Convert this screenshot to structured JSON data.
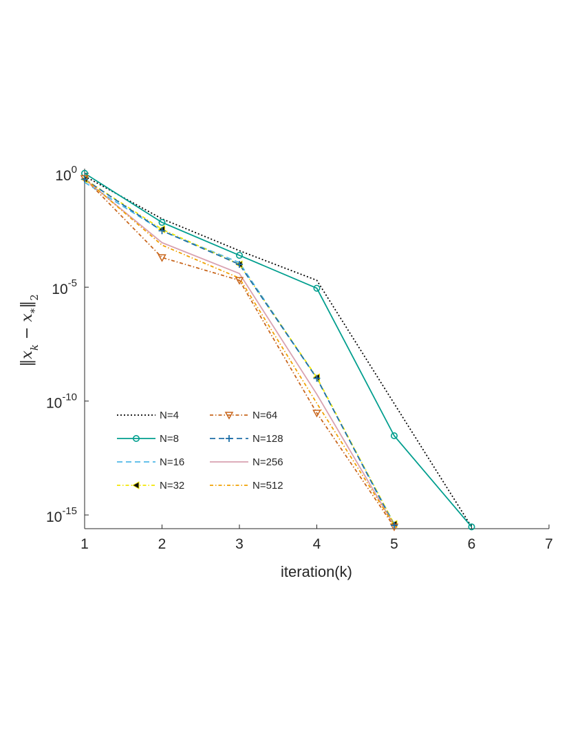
{
  "chart_data": {
    "type": "line",
    "xlabel": "iteration(k)",
    "ylabel": "‖x_k − x_*‖_2",
    "x_scale": "linear",
    "y_scale": "log",
    "xlim": [
      1,
      7
    ],
    "ylim": [
      2.5e-16,
      1.6
    ],
    "x_ticks": [
      1,
      2,
      3,
      4,
      5,
      6,
      7
    ],
    "y_ticks": [
      {
        "value": 1,
        "base": "10",
        "exp": "0"
      },
      {
        "value": 1e-05,
        "base": "10",
        "exp": "-5"
      },
      {
        "value": 1e-10,
        "base": "10",
        "exp": "-10"
      },
      {
        "value": 1e-15,
        "base": "10",
        "exp": "-15"
      }
    ],
    "grid": false,
    "legend_placement": "lower-left",
    "series": [
      {
        "name": "N=4",
        "color": "#000000",
        "dash": "2,3",
        "marker": "none",
        "x": [
          1,
          2,
          3,
          4,
          6
        ],
        "y": [
          0.75,
          0.01,
          0.0004,
          2e-05,
          3e-16
        ]
      },
      {
        "name": "N=8",
        "color": "#009e8e",
        "dash": "",
        "marker": "circle",
        "x": [
          1,
          2,
          3,
          4,
          5,
          6
        ],
        "y": [
          1.0,
          0.007,
          0.00025,
          9e-06,
          3e-12,
          3e-16
        ]
      },
      {
        "name": "N=16",
        "color": "#4db8e8",
        "dash": "8,5",
        "marker": "none",
        "x": [
          1,
          2,
          3,
          4,
          5
        ],
        "y": [
          0.4,
          0.003,
          0.00012,
          1e-09,
          4e-16
        ]
      },
      {
        "name": "N=32",
        "color": "#f2e600",
        "dash": "5,3,1.5,3",
        "marker": "triangle-left",
        "x": [
          1,
          2,
          3,
          4,
          5
        ],
        "y": [
          0.55,
          0.0035,
          0.0001,
          1.1e-09,
          4e-16
        ]
      },
      {
        "name": "N=64",
        "color": "#c8651b",
        "dash": "5,3,1.5,3",
        "marker": "triangle-down",
        "x": [
          1,
          2,
          3,
          4,
          5
        ],
        "y": [
          0.6,
          0.0002,
          2e-05,
          3e-11,
          3e-16
        ]
      },
      {
        "name": "N=128",
        "color": "#1e6fa8",
        "dash": "8,5",
        "marker": "plus",
        "x": [
          1,
          2,
          3,
          4,
          5
        ],
        "y": [
          0.55,
          0.003,
          0.0001,
          1e-09,
          3.5e-16
        ]
      },
      {
        "name": "N=256",
        "color": "#d8a1b0",
        "dash": "",
        "marker": "none",
        "x": [
          1,
          2,
          3,
          4,
          5
        ],
        "y": [
          0.55,
          0.0009,
          4e-05,
          2e-10,
          3.5e-16
        ]
      },
      {
        "name": "N=512",
        "color": "#f0a000",
        "dash": "5,3,1.5,3",
        "marker": "none",
        "x": [
          1,
          2,
          3,
          4,
          5
        ],
        "y": [
          0.6,
          0.0007,
          2.5e-05,
          8e-11,
          3.5e-16
        ]
      }
    ]
  }
}
